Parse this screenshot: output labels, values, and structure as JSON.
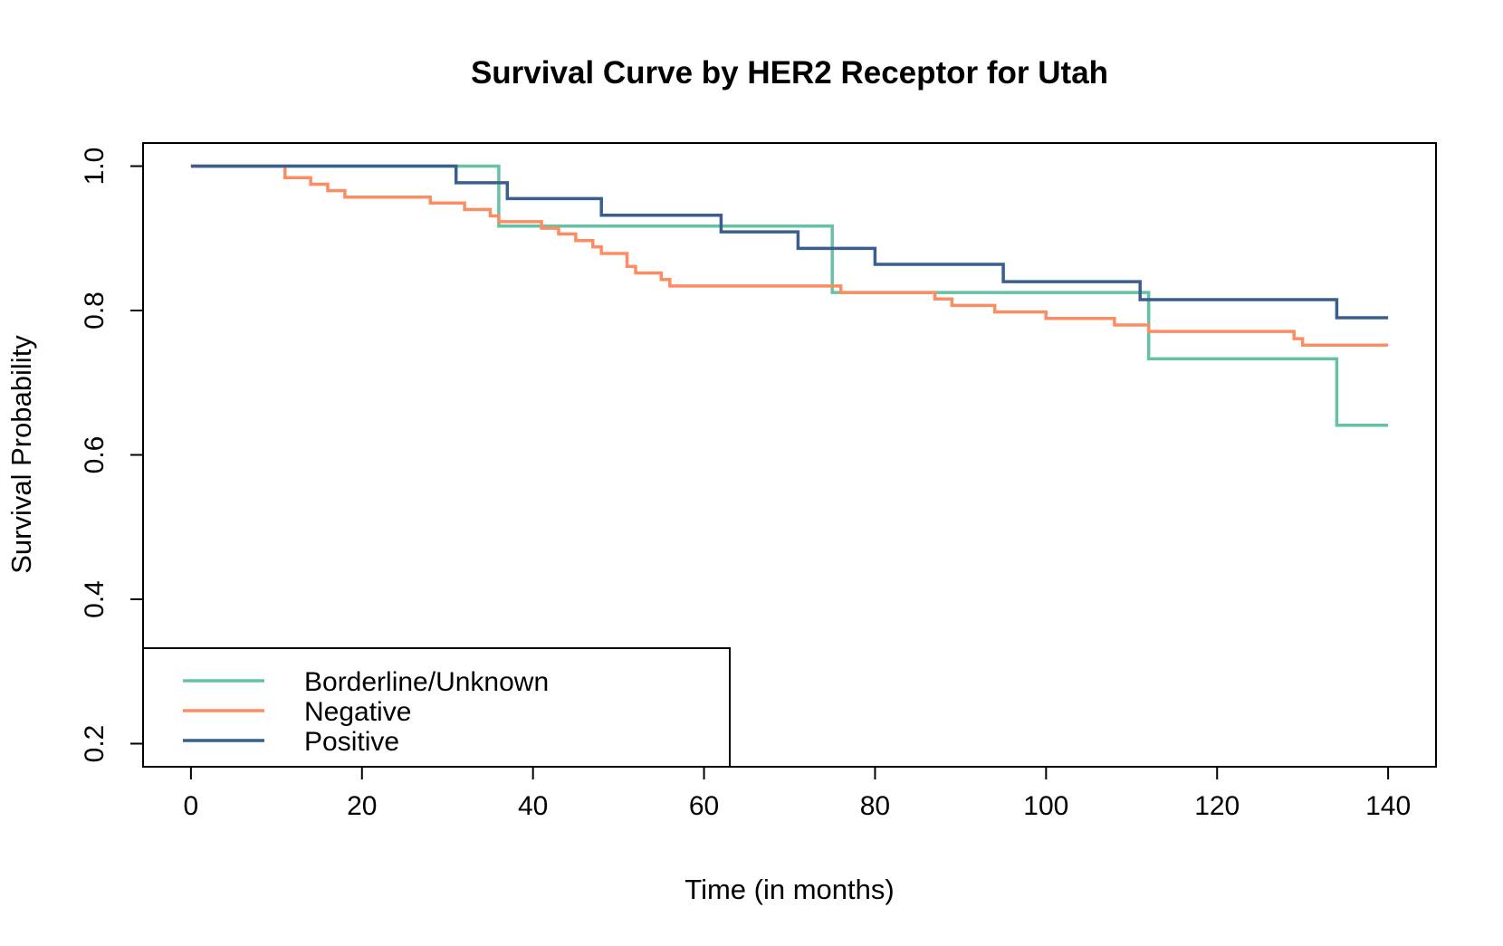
{
  "chart_data": {
    "type": "line",
    "step": true,
    "title": "Survival Curve by HER2 Receptor for Utah",
    "xlabel": "Time (in months)",
    "ylabel": "Survival Probability",
    "xlim": [
      -5.6,
      145.6
    ],
    "ylim": [
      0.168,
      1.032
    ],
    "xticks": [
      0,
      20,
      40,
      60,
      80,
      100,
      120,
      140
    ],
    "yticks": [
      0.2,
      0.4,
      0.6,
      0.8,
      1.0
    ],
    "xtick_labels": [
      "0",
      "20",
      "40",
      "60",
      "80",
      "100",
      "120",
      "140"
    ],
    "ytick_labels": [
      "0.2",
      "0.4",
      "0.6",
      "0.8",
      "1.0"
    ],
    "grid": false,
    "legend_position": "bottom-left",
    "series": [
      {
        "name": "Borderline/Unknown",
        "color": "#66c2a5",
        "points": [
          [
            0,
            1.0
          ],
          [
            36,
            0.917
          ],
          [
            75,
            0.825
          ],
          [
            112,
            0.733
          ],
          [
            134,
            0.641
          ],
          [
            140,
            0.641
          ]
        ]
      },
      {
        "name": "Negative",
        "color": "#fc8d62",
        "points": [
          [
            0,
            1.0
          ],
          [
            11,
            0.984
          ],
          [
            14,
            0.975
          ],
          [
            16,
            0.966
          ],
          [
            18,
            0.957
          ],
          [
            28,
            0.949
          ],
          [
            32,
            0.94
          ],
          [
            35,
            0.931
          ],
          [
            36,
            0.923
          ],
          [
            41,
            0.914
          ],
          [
            43,
            0.906
          ],
          [
            45,
            0.897
          ],
          [
            47,
            0.888
          ],
          [
            48,
            0.879
          ],
          [
            51,
            0.861
          ],
          [
            52,
            0.852
          ],
          [
            55,
            0.843
          ],
          [
            56,
            0.834
          ],
          [
            76,
            0.825
          ],
          [
            87,
            0.816
          ],
          [
            89,
            0.807
          ],
          [
            94,
            0.798
          ],
          [
            100,
            0.789
          ],
          [
            108,
            0.78
          ],
          [
            112,
            0.771
          ],
          [
            129,
            0.761
          ],
          [
            130,
            0.752
          ],
          [
            140,
            0.752
          ]
        ]
      },
      {
        "name": "Positive",
        "color": "#3a5f8f",
        "points": [
          [
            0,
            1.0
          ],
          [
            31,
            0.977
          ],
          [
            37,
            0.955
          ],
          [
            48,
            0.932
          ],
          [
            62,
            0.909
          ],
          [
            71,
            0.886
          ],
          [
            80,
            0.864
          ],
          [
            95,
            0.84
          ],
          [
            111,
            0.815
          ],
          [
            134,
            0.79
          ],
          [
            140,
            0.79
          ]
        ]
      }
    ]
  }
}
